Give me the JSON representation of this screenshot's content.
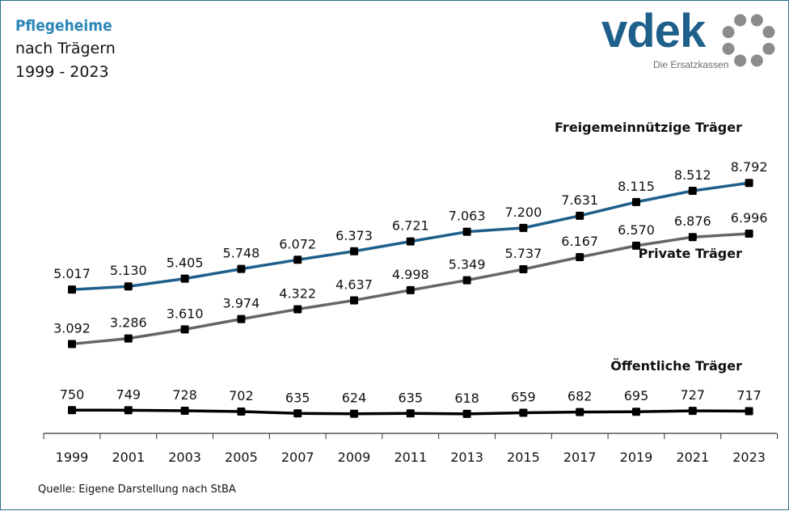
{
  "header": {
    "title": "Pflegeheime",
    "subtitle": "nach Trägern",
    "period": "1999 - 2023"
  },
  "logo": {
    "word": "vdek",
    "tagline": "Die Ersatzkassen",
    "color": "#1f5f8b",
    "dots_color": "#8c8c8c"
  },
  "source": "Quelle: Eigene Darstellung nach StBA",
  "chart_data": {
    "type": "line",
    "x": [
      "1999",
      "2001",
      "2003",
      "2005",
      "2007",
      "2009",
      "2011",
      "2013",
      "2015",
      "2017",
      "2019",
      "2021",
      "2023"
    ],
    "ylim": [
      0,
      9500
    ],
    "grid": false,
    "series": [
      {
        "name": "Freigemeinnützige Träger",
        "color": "#1f5f8b",
        "values": [
          5017,
          5130,
          5405,
          5748,
          6072,
          6373,
          6721,
          7063,
          7200,
          7631,
          8115,
          8512,
          8792
        ],
        "labels": [
          "5.017",
          "5.130",
          "5.405",
          "5.748",
          "6.072",
          "6.373",
          "6.721",
          "7.063",
          "7.200",
          "7.631",
          "8.115",
          "8.512",
          "8.792"
        ]
      },
      {
        "name": "Private Träger",
        "color": "#666666",
        "values": [
          3092,
          3286,
          3610,
          3974,
          4322,
          4637,
          4998,
          5349,
          5737,
          6167,
          6570,
          6876,
          6996
        ],
        "labels": [
          "3.092",
          "3.286",
          "3.610",
          "3.974",
          "4.322",
          "4.637",
          "4.998",
          "5.349",
          "5.737",
          "6.167",
          "6.570",
          "6.876",
          "6.996"
        ]
      },
      {
        "name": "Öffentliche Träger",
        "color": "#000000",
        "values": [
          750,
          749,
          728,
          702,
          635,
          624,
          635,
          618,
          659,
          682,
          695,
          727,
          717
        ],
        "labels": [
          "750",
          "749",
          "728",
          "702",
          "635",
          "624",
          "635",
          "618",
          "659",
          "682",
          "695",
          "727",
          "717"
        ]
      }
    ]
  }
}
